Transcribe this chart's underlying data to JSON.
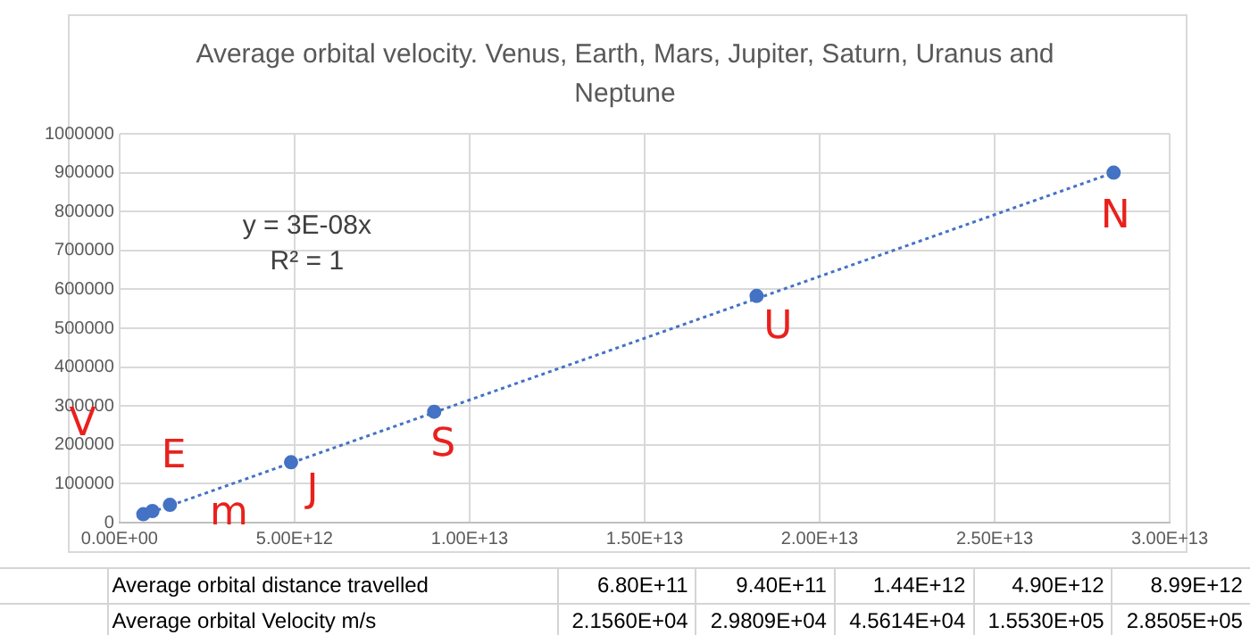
{
  "chart_data": {
    "type": "scatter",
    "title": "Average orbital velocity.  Venus, Earth, Mars, Jupiter, Saturn, Uranus and Neptune",
    "x": [
      680000000000,
      940000000000,
      1440000000000,
      4900000000000,
      8990000000000,
      18200000000000,
      28400000000000
    ],
    "series": [
      {
        "type": "scatter",
        "color": "#4472c4",
        "values": [
          21560,
          29809,
          45614,
          155300,
          285050,
          583000,
          900000
        ]
      },
      {
        "type": "line",
        "color": "#4472c4",
        "x": [
          700000000000,
          28400000000000
        ],
        "values": [
          20000,
          900000
        ],
        "line_style": "dotted",
        "marker": "none"
      }
    ],
    "marker": "circle",
    "xlim": [
      0,
      30000000000000
    ],
    "xticks": [
      {
        "value": 0,
        "label": "0.00E+00"
      },
      {
        "value": 5000000000000,
        "label": "5.00E+12"
      },
      {
        "value": 10000000000000,
        "label": "1.00E+13"
      },
      {
        "value": 15000000000000,
        "label": "1.50E+13"
      },
      {
        "value": 20000000000000,
        "label": "2.00E+13"
      },
      {
        "value": 25000000000000,
        "label": "2.50E+13"
      },
      {
        "value": 30000000000000,
        "label": "3.00E+13"
      }
    ],
    "ylim": [
      0,
      1000000
    ],
    "yticks": [
      0,
      100000,
      200000,
      300000,
      400000,
      500000,
      600000,
      700000,
      800000,
      900000,
      1000000
    ],
    "grid": true,
    "legend": false,
    "annotations": [
      {
        "text": "V",
        "x": 680000000000,
        "y": 21560
      },
      {
        "text": "E",
        "x": 940000000000,
        "y": 29809
      },
      {
        "text": "m",
        "x": 1440000000000,
        "y": 45614
      },
      {
        "text": "J",
        "x": 4900000000000,
        "y": 155300
      },
      {
        "text": "S",
        "x": 8990000000000,
        "y": 285050
      },
      {
        "text": "U",
        "x": 18200000000000,
        "y": 583000
      },
      {
        "text": "N",
        "x": 28400000000000,
        "y": 900000
      },
      "y = 3E-08x",
      "R² = 1",
      "Average orbital distance travelled",
      "6.80E+11",
      "9.40E+11",
      "1.44E+12",
      "4.90E+12",
      "8.99E+12",
      "Average orbital Velocity m/s",
      "2.1560E+04",
      "2.9809E+04",
      "4.5614E+04",
      "1.5530E+05",
      "2.8505E+05"
    ]
  }
}
